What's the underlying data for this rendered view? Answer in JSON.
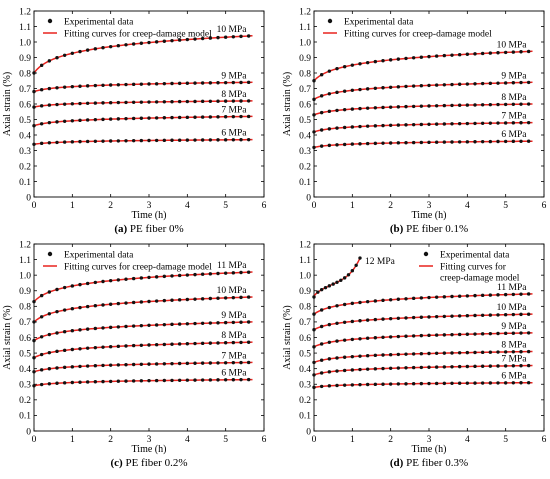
{
  "colors": {
    "marker": "#111111",
    "fit": "#e8231e",
    "axis": "#000000"
  },
  "chart_data": [
    {
      "type": "line",
      "caption_label": "(a)",
      "caption_text": "PE fiber 0%",
      "xlabel": "Time (h)",
      "ylabel": "Axial strain (%)",
      "xlim": [
        0,
        6
      ],
      "ylim": [
        0,
        1.2
      ],
      "xticks": [
        "0",
        "1",
        "2",
        "3",
        "4",
        "5",
        "6"
      ],
      "yticks": [
        "0",
        "0.1",
        "0.2",
        "0.3",
        "0.4",
        "0.5",
        "0.6",
        "0.7",
        "0.8",
        "0.9",
        "1.0",
        "1.1",
        "1.2"
      ],
      "legend": [
        "Experimental data",
        "Fitting curves for creep-damage model"
      ],
      "legend_position": "top-left",
      "series": [
        {
          "name": "6 MPa",
          "x_end": 5.7,
          "y_start": 0.34,
          "y_end": 0.37,
          "shape": "log"
        },
        {
          "name": "7 MPa",
          "x_end": 5.7,
          "y_start": 0.46,
          "y_end": 0.52,
          "shape": "log"
        },
        {
          "name": "8 MPa",
          "x_end": 5.7,
          "y_start": 0.58,
          "y_end": 0.62,
          "shape": "log"
        },
        {
          "name": "9 MPa",
          "x_end": 5.7,
          "y_start": 0.68,
          "y_end": 0.74,
          "shape": "log"
        },
        {
          "name": "10 MPa",
          "x_end": 5.7,
          "y_start": 0.8,
          "y_end": 1.04,
          "shape": "log"
        }
      ]
    },
    {
      "type": "line",
      "caption_label": "(b)",
      "caption_text": "PE fiber 0.1%",
      "xlabel": "Time (h)",
      "ylabel": "Axial strain (%)",
      "xlim": [
        0,
        6
      ],
      "ylim": [
        0,
        1.2
      ],
      "xticks": [
        "0",
        "1",
        "2",
        "3",
        "4",
        "5",
        "6"
      ],
      "yticks": [
        "0",
        "0.1",
        "0.2",
        "0.3",
        "0.4",
        "0.5",
        "0.6",
        "0.7",
        "0.8",
        "0.9",
        "1.0",
        "1.1",
        "1.2"
      ],
      "legend": [
        "Experimental data",
        "Fitting curves for creep-damage model"
      ],
      "legend_position": "top-left",
      "series": [
        {
          "name": "6 MPa",
          "x_end": 5.7,
          "y_start": 0.32,
          "y_end": 0.36,
          "shape": "log"
        },
        {
          "name": "7 MPa",
          "x_end": 5.7,
          "y_start": 0.42,
          "y_end": 0.48,
          "shape": "log"
        },
        {
          "name": "8 MPa",
          "x_end": 5.7,
          "y_start": 0.53,
          "y_end": 0.6,
          "shape": "log"
        },
        {
          "name": "9 MPa",
          "x_end": 5.7,
          "y_start": 0.63,
          "y_end": 0.74,
          "shape": "log"
        },
        {
          "name": "10 MPa",
          "x_end": 5.7,
          "y_start": 0.75,
          "y_end": 0.94,
          "shape": "log"
        }
      ]
    },
    {
      "type": "line",
      "caption_label": "(c)",
      "caption_text": "PE fiber 0.2%",
      "xlabel": "Time (h)",
      "ylabel": "Axial strain (%)",
      "xlim": [
        0,
        6
      ],
      "ylim": [
        0,
        1.2
      ],
      "xticks": [
        "0",
        "1",
        "2",
        "3",
        "4",
        "5",
        "6"
      ],
      "yticks": [
        "0",
        "0.1",
        "0.2",
        "0.3",
        "0.4",
        "0.5",
        "0.6",
        "0.7",
        "0.8",
        "0.9",
        "1.0",
        "1.1",
        "1.2"
      ],
      "legend": [
        "Experimental data",
        "Fitting curves for creep-damage model"
      ],
      "legend_position": "top-left",
      "series": [
        {
          "name": "6 MPa",
          "x_end": 5.7,
          "y_start": 0.29,
          "y_end": 0.33,
          "shape": "log"
        },
        {
          "name": "7 MPa",
          "x_end": 5.7,
          "y_start": 0.38,
          "y_end": 0.44,
          "shape": "log"
        },
        {
          "name": "8 MPa",
          "x_end": 5.7,
          "y_start": 0.47,
          "y_end": 0.57,
          "shape": "log"
        },
        {
          "name": "9 MPa",
          "x_end": 5.7,
          "y_start": 0.58,
          "y_end": 0.7,
          "shape": "log"
        },
        {
          "name": "10 MPa",
          "x_end": 5.7,
          "y_start": 0.7,
          "y_end": 0.86,
          "shape": "log"
        },
        {
          "name": "11 MPa",
          "x_end": 5.7,
          "y_start": 0.83,
          "y_end": 1.02,
          "shape": "log"
        }
      ]
    },
    {
      "type": "line",
      "caption_label": "(d)",
      "caption_text": "PE fiber 0.3%",
      "xlabel": "Time (h)",
      "ylabel": "Axial strain (%)",
      "xlim": [
        0,
        6
      ],
      "ylim": [
        0,
        1.2
      ],
      "xticks": [
        "0",
        "1",
        "2",
        "3",
        "4",
        "5",
        "6"
      ],
      "yticks": [
        "0",
        "0.1",
        "0.2",
        "0.3",
        "0.4",
        "0.5",
        "0.6",
        "0.7",
        "0.8",
        "0.9",
        "1.0",
        "1.1",
        "1.2"
      ],
      "legend": [
        "Experimental data",
        "Fitting curves for\ncreep-damage model"
      ],
      "legend_position": "top-right",
      "series": [
        {
          "name": "6 MPa",
          "x_end": 5.7,
          "y_start": 0.28,
          "y_end": 0.31,
          "shape": "log"
        },
        {
          "name": "7 MPa",
          "x_end": 5.7,
          "y_start": 0.36,
          "y_end": 0.42,
          "shape": "log"
        },
        {
          "name": "8 MPa",
          "x_end": 5.7,
          "y_start": 0.44,
          "y_end": 0.51,
          "shape": "log"
        },
        {
          "name": "9 MPa",
          "x_end": 5.7,
          "y_start": 0.54,
          "y_end": 0.63,
          "shape": "log"
        },
        {
          "name": "10 MPa",
          "x_end": 5.7,
          "y_start": 0.65,
          "y_end": 0.75,
          "shape": "log"
        },
        {
          "name": "11 MPa",
          "x_end": 5.7,
          "y_start": 0.75,
          "y_end": 0.88,
          "shape": "log"
        },
        {
          "name": "12 MPa",
          "x_end": 1.2,
          "y_start": 0.86,
          "y_end": 1.11,
          "shape": "accel"
        }
      ]
    }
  ]
}
